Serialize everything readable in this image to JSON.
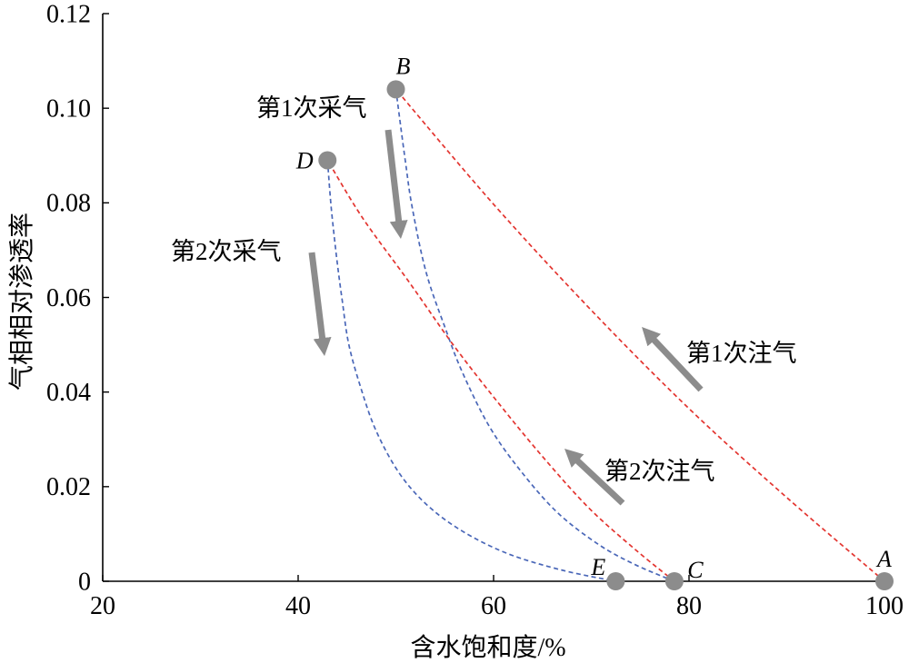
{
  "chart_data": {
    "type": "line",
    "xlabel": "含水饱和度/%",
    "ylabel": "气相相对渗透率",
    "xlim": [
      20,
      100
    ],
    "ylim": [
      0,
      0.12
    ],
    "xticks": [
      "20",
      "40",
      "60",
      "80",
      "100"
    ],
    "yticks": [
      "0",
      "0.02",
      "0.04",
      "0.06",
      "0.08",
      "0.10",
      "0.12"
    ],
    "grid": false,
    "point_color": "#8c8c8c",
    "arrow_color": "#8c8c8c",
    "points": [
      {
        "label": "A",
        "x": 100,
        "y": 0
      },
      {
        "label": "B",
        "x": 50,
        "y": 0.104
      },
      {
        "label": "C",
        "x": 78.5,
        "y": 0
      },
      {
        "label": "D",
        "x": 43,
        "y": 0.089
      },
      {
        "label": "E",
        "x": 72.5,
        "y": 0
      }
    ],
    "series": [
      {
        "name": "第1次注气",
        "color": "#e3342f",
        "dashed": true,
        "x": [
          100,
          90,
          80,
          70,
          60,
          50
        ],
        "y": [
          0,
          0.0177,
          0.0365,
          0.0573,
          0.0797,
          0.104
        ]
      },
      {
        "name": "第1次采气",
        "color": "#4a67b8",
        "dashed": true,
        "x": [
          50,
          51,
          51.7,
          53.1,
          55,
          56.8,
          59.6,
          62.9,
          66.6,
          70.8,
          74.5,
          78.5
        ],
        "y": [
          0.104,
          0.0883,
          0.0787,
          0.0653,
          0.0538,
          0.0442,
          0.0326,
          0.023,
          0.0144,
          0.0077,
          0.0035,
          0
        ]
      },
      {
        "name": "第2次注气",
        "color": "#e3342f",
        "dashed": true,
        "x": [
          78.5,
          74.5,
          69.8,
          65.2,
          60.6,
          55.9,
          51.3,
          46.6,
          43
        ],
        "y": [
          0,
          0.0067,
          0.0154,
          0.0259,
          0.0374,
          0.0499,
          0.0634,
          0.0768,
          0.089
        ]
      },
      {
        "name": "第2次采气",
        "color": "#4a67b8",
        "dashed": true,
        "x": [
          43,
          43.4,
          43.9,
          44.5,
          45.2,
          46.5,
          48,
          50.3,
          53.1,
          56.8,
          61.5,
          67.1,
          72.5
        ],
        "y": [
          0.089,
          0.0787,
          0.0691,
          0.0595,
          0.0499,
          0.0403,
          0.0317,
          0.023,
          0.0163,
          0.0106,
          0.0058,
          0.0023,
          0
        ]
      }
    ]
  }
}
